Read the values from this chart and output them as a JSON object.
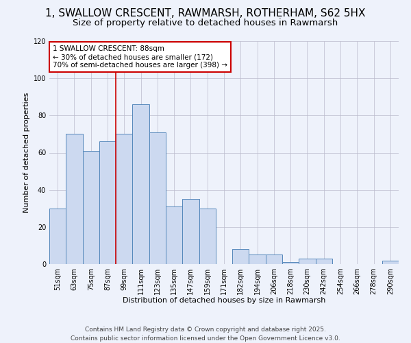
{
  "title": "1, SWALLOW CRESCENT, RAWMARSH, ROTHERHAM, S62 5HX",
  "subtitle": "Size of property relative to detached houses in Rawmarsh",
  "xlabel": "Distribution of detached houses by size in Rawmarsh",
  "ylabel": "Number of detached properties",
  "bar_color": "#ccd9f0",
  "bar_edge_color": "#5588bb",
  "background_color": "#eef2fb",
  "grid_color": "#bbbbcc",
  "categories": [
    "51sqm",
    "63sqm",
    "75sqm",
    "87sqm",
    "99sqm",
    "111sqm",
    "123sqm",
    "135sqm",
    "147sqm",
    "159sqm",
    "171sqm",
    "182sqm",
    "194sqm",
    "206sqm",
    "218sqm",
    "230sqm",
    "242sqm",
    "254sqm",
    "266sqm",
    "278sqm",
    "290sqm"
  ],
  "values": [
    30,
    70,
    61,
    66,
    70,
    86,
    71,
    31,
    35,
    30,
    0,
    8,
    5,
    5,
    1,
    3,
    3,
    0,
    0,
    0,
    2
  ],
  "ylim": [
    0,
    120
  ],
  "yticks": [
    0,
    20,
    40,
    60,
    80,
    100,
    120
  ],
  "annotation_title": "1 SWALLOW CRESCENT: 88sqm",
  "annotation_line1": "← 30% of detached houses are smaller (172)",
  "annotation_line2": "70% of semi-detached houses are larger (398) →",
  "vline_x": 3.5,
  "annotation_box_color": "#ffffff",
  "annotation_border_color": "#cc0000",
  "footer1": "Contains HM Land Registry data © Crown copyright and database right 2025.",
  "footer2": "Contains public sector information licensed under the Open Government Licence v3.0.",
  "title_fontsize": 11,
  "subtitle_fontsize": 9.5,
  "axis_label_fontsize": 8,
  "tick_fontsize": 7,
  "annotation_fontsize": 7.5,
  "footer_fontsize": 6.5
}
